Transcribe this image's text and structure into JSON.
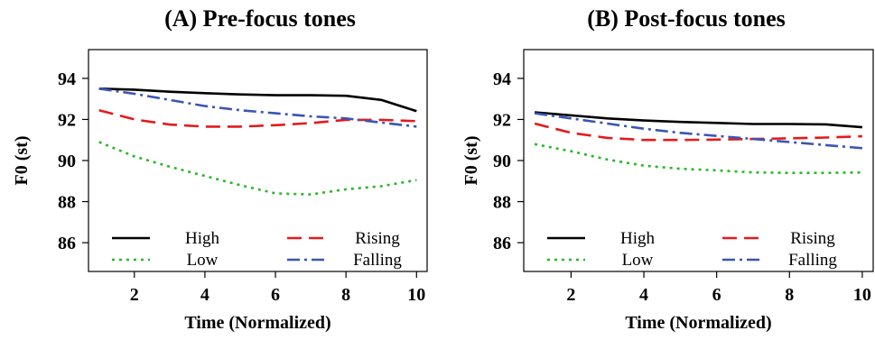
{
  "chart_data": [
    {
      "type": "line",
      "title": "(A) Pre-focus tones",
      "xlabel": "Time (Normalized)",
      "ylabel": "F0 (st)",
      "xlim": [
        0.7,
        10.3
      ],
      "ylim": [
        84.6,
        95.4
      ],
      "xticks": [
        2,
        4,
        6,
        8,
        10
      ],
      "yticks": [
        86,
        88,
        90,
        92,
        94
      ],
      "grid": false,
      "legend": "bottom, two columns",
      "x": [
        1,
        2,
        3,
        4,
        5,
        6,
        7,
        8,
        9,
        10
      ],
      "series": [
        {
          "name": "High",
          "color": "#000000",
          "dash": "solid",
          "values": [
            93.5,
            93.45,
            93.35,
            93.28,
            93.22,
            93.18,
            93.18,
            93.15,
            92.95,
            92.4
          ]
        },
        {
          "name": "Rising",
          "color": "#e41a1c",
          "dash": "dashed",
          "values": [
            92.45,
            92.0,
            91.75,
            91.65,
            91.65,
            91.72,
            91.82,
            91.98,
            91.98,
            91.92
          ]
        },
        {
          "name": "Low",
          "color": "#2db52d",
          "dash": "dotted",
          "values": [
            90.9,
            90.2,
            89.7,
            89.25,
            88.8,
            88.4,
            88.35,
            88.6,
            88.75,
            89.05
          ]
        },
        {
          "name": "Falling",
          "color": "#3a55b4",
          "dash": "dotdash",
          "values": [
            93.5,
            93.25,
            92.95,
            92.65,
            92.45,
            92.3,
            92.15,
            92.05,
            91.85,
            91.65
          ]
        }
      ]
    },
    {
      "type": "line",
      "title": "(B) Post-focus tones",
      "xlabel": "Time (Normalized)",
      "ylabel": "F0 (st)",
      "xlim": [
        0.7,
        10.3
      ],
      "ylim": [
        84.6,
        95.4
      ],
      "xticks": [
        2,
        4,
        6,
        8,
        10
      ],
      "yticks": [
        86,
        88,
        90,
        92,
        94
      ],
      "grid": false,
      "legend": "bottom, two columns",
      "x": [
        1,
        2,
        3,
        4,
        5,
        6,
        7,
        8,
        9,
        10
      ],
      "series": [
        {
          "name": "High",
          "color": "#000000",
          "dash": "solid",
          "values": [
            92.35,
            92.2,
            92.05,
            91.95,
            91.88,
            91.83,
            91.78,
            91.78,
            91.76,
            91.62
          ]
        },
        {
          "name": "Rising",
          "color": "#e41a1c",
          "dash": "dashed",
          "values": [
            91.8,
            91.35,
            91.1,
            91.0,
            91.0,
            91.02,
            91.05,
            91.08,
            91.12,
            91.18
          ]
        },
        {
          "name": "Low",
          "color": "#2db52d",
          "dash": "dotted",
          "values": [
            90.8,
            90.45,
            90.05,
            89.75,
            89.6,
            89.52,
            89.42,
            89.4,
            89.4,
            89.42
          ]
        },
        {
          "name": "Falling",
          "color": "#3a55b4",
          "dash": "dotdash",
          "values": [
            92.3,
            92.05,
            91.8,
            91.55,
            91.35,
            91.2,
            91.05,
            90.9,
            90.75,
            90.6
          ]
        }
      ]
    }
  ]
}
